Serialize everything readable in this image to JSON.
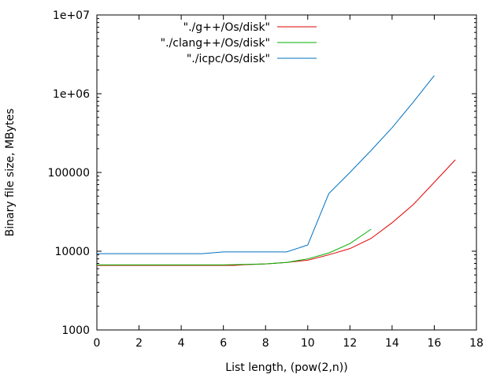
{
  "chart_data": {
    "type": "line",
    "title": "",
    "xlabel": "List length, (pow(2,n))",
    "ylabel": "Binary file size, MBytes",
    "xlim": [
      0,
      18
    ],
    "ylim": [
      1000,
      10000000
    ],
    "y_scale": "log",
    "grid": false,
    "legend_position": "top-right",
    "x_ticks": [
      0,
      2,
      4,
      6,
      8,
      10,
      12,
      14,
      16,
      18
    ],
    "x_tick_labels": [
      "0",
      "2",
      "4",
      "6",
      "8",
      "10",
      "12",
      "14",
      "16",
      "18"
    ],
    "y_ticks": [
      1000,
      10000,
      100000,
      1000000,
      10000000
    ],
    "y_tick_labels": [
      "1000",
      "10000",
      "100000",
      "1e+06",
      "1e+07"
    ],
    "series": [
      {
        "name": "\"./g++/Os/disk\"",
        "color": "#e00000",
        "x": [
          0,
          1,
          2,
          3,
          4,
          5,
          6,
          6.5,
          7,
          8,
          9,
          10,
          11,
          12,
          13,
          14,
          15,
          16,
          17
        ],
        "y": [
          6600,
          6600,
          6600,
          6600,
          6600,
          6600,
          6600,
          6600,
          6750,
          6900,
          7200,
          7700,
          9000,
          10800,
          14500,
          23000,
          39000,
          75000,
          145000
        ]
      },
      {
        "name": "\"./clang++/Os/disk\"",
        "color": "#00b000",
        "x": [
          0,
          1,
          2,
          3,
          4,
          5,
          6,
          7,
          8,
          9,
          10,
          11,
          12,
          13
        ],
        "y": [
          6700,
          6700,
          6700,
          6700,
          6700,
          6700,
          6700,
          6800,
          6900,
          7200,
          8000,
          9500,
          12500,
          19000
        ]
      },
      {
        "name": "\"./icpc/Os/disk\"",
        "color": "#0070c0",
        "x": [
          0,
          1,
          2,
          3,
          4,
          5,
          6,
          7,
          8,
          9,
          10,
          11,
          12,
          13,
          14,
          15,
          16
        ],
        "y": [
          9300,
          9300,
          9300,
          9300,
          9300,
          9300,
          9800,
          9800,
          9800,
          9800,
          12000,
          54000,
          100000,
          190000,
          370000,
          780000,
          1700000
        ]
      }
    ]
  }
}
